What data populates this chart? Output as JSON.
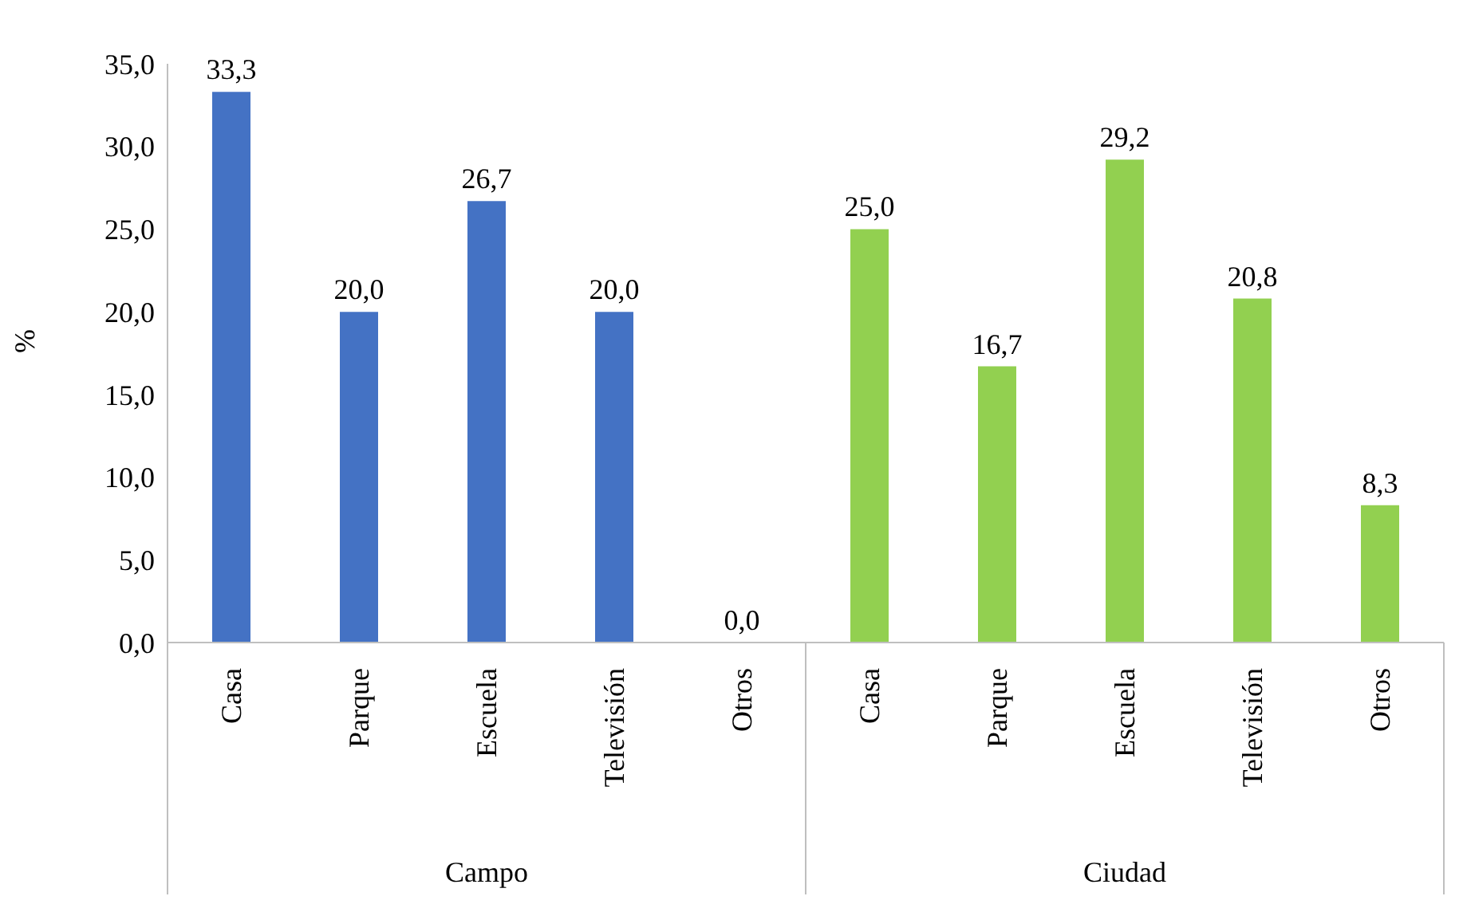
{
  "chart_data": {
    "type": "bar",
    "ylabel": "%",
    "categories": [
      "Casa",
      "Parque",
      "Escuela",
      "Televisión",
      "Otros",
      "Casa",
      "Parque",
      "Escuela",
      "Televisión",
      "Otros"
    ],
    "values": [
      33.3,
      20.0,
      26.7,
      20.0,
      0.0,
      25.0,
      16.7,
      29.2,
      20.8,
      8.3
    ],
    "colors": [
      "#4472c4",
      "#4472c4",
      "#4472c4",
      "#4472c4",
      "#4472c4",
      "#92d050",
      "#92d050",
      "#92d050",
      "#92d050",
      "#92d050"
    ],
    "value_labels": [
      "33,3",
      "20,0",
      "26,7",
      "20,0",
      "0,0",
      "25,0",
      "16,7",
      "29,2",
      "20,8",
      "8,3"
    ],
    "annotations": [
      "Campo",
      "Ciudad"
    ],
    "ylim": [
      0,
      35
    ],
    "yticks": [
      {
        "value": 0,
        "label": "0,0"
      },
      {
        "value": 5,
        "label": "5,0"
      },
      {
        "value": 10,
        "label": "10,0"
      },
      {
        "value": 15,
        "label": "15,0"
      },
      {
        "value": 20,
        "label": "20,0"
      },
      {
        "value": 25,
        "label": "25,0"
      },
      {
        "value": 30,
        "label": "30,0"
      },
      {
        "value": 35,
        "label": "35,0"
      }
    ],
    "grid": false,
    "legend": false
  }
}
